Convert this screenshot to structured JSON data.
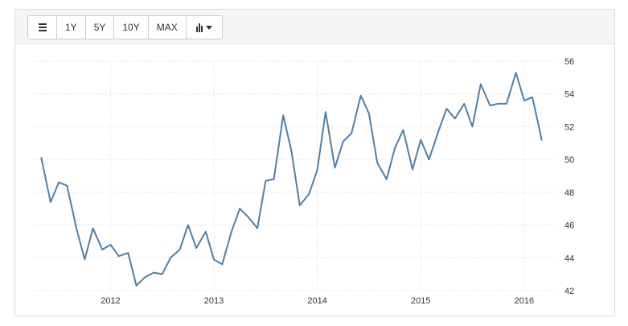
{
  "toolbar": {
    "calendar_icon": "calendar-icon",
    "ranges": [
      "1Y",
      "5Y",
      "10Y",
      "MAX"
    ],
    "chart_type_icon": "bar-chart-caret-icon"
  },
  "colors": {
    "line": "#4f7fa8",
    "grid": "#d8d8d8",
    "toolbar_bg": "#f5f5f5"
  },
  "chart_data": {
    "type": "line",
    "title": "",
    "xlabel": "",
    "ylabel": "",
    "ylim": [
      42,
      56
    ],
    "y_ticks": [
      "42",
      "44",
      "46",
      "48",
      "50",
      "52",
      "54",
      "56"
    ],
    "x_tick_labels": [
      "2012",
      "2013",
      "2014",
      "2015",
      "2016"
    ],
    "x_ticks": [
      2012.0,
      2013.0,
      2014.0,
      2015.0,
      2016.0
    ],
    "xlim": [
      2011.25,
      2016.25
    ],
    "grid": true,
    "y_axis_side": "right",
    "series": [
      {
        "x": [
          2011.33,
          2011.42,
          2011.5,
          2011.58,
          2011.67,
          2011.75,
          2011.83,
          2011.92,
          2012.0,
          2012.08,
          2012.17,
          2012.25,
          2012.33,
          2012.42,
          2012.5,
          2012.58,
          2012.67,
          2012.75,
          2012.83,
          2012.92,
          2013.0,
          2013.08,
          2013.17,
          2013.25,
          2013.33,
          2013.42,
          2013.5,
          2013.58,
          2013.67,
          2013.75,
          2013.83,
          2013.92,
          2014.0,
          2014.08,
          2014.17,
          2014.25,
          2014.33,
          2014.42,
          2014.5,
          2014.58,
          2014.67,
          2014.75,
          2014.83,
          2014.92,
          2015.0,
          2015.08,
          2015.17,
          2015.25,
          2015.33,
          2015.42,
          2015.5,
          2015.58,
          2015.67,
          2015.75,
          2015.83,
          2015.92,
          2016.0,
          2016.08,
          2016.17
        ],
        "values": [
          50.1,
          47.4,
          48.6,
          48.4,
          45.8,
          43.9,
          45.8,
          44.5,
          44.8,
          44.1,
          44.3,
          42.3,
          42.8,
          43.1,
          43.0,
          44.0,
          44.5,
          46.0,
          44.6,
          45.6,
          43.9,
          43.6,
          45.6,
          47.0,
          46.5,
          45.8,
          48.7,
          48.8,
          52.7,
          50.5,
          47.2,
          47.9,
          49.4,
          52.9,
          49.5,
          51.1,
          51.6,
          53.9,
          52.8,
          49.8,
          48.8,
          50.7,
          51.8,
          49.4,
          51.2,
          50.0,
          51.7,
          53.1,
          52.5,
          53.4,
          52.0,
          54.6,
          53.3,
          53.4,
          53.4,
          55.3,
          53.6,
          53.8,
          51.2
        ]
      }
    ]
  }
}
